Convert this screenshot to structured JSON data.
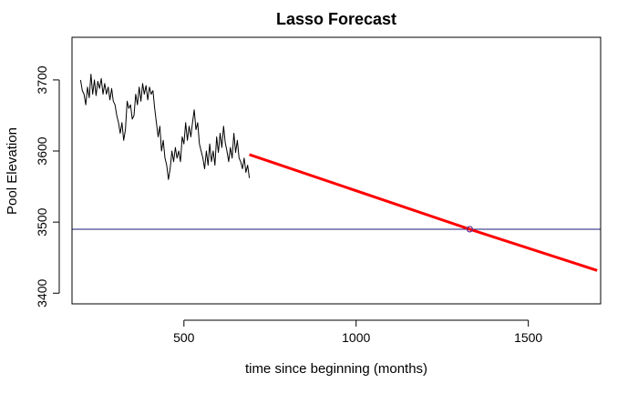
{
  "chart_data": {
    "type": "line",
    "title": "Lasso Forecast",
    "xlabel": "time since beginning (months)",
    "ylabel": "Pool Elevation",
    "xlim": [
      175,
      1710
    ],
    "ylim": [
      3385,
      3760
    ],
    "x_ticks": [
      500,
      1000,
      1500
    ],
    "y_ticks": [
      3400,
      3500,
      3600,
      3700
    ],
    "grid": false,
    "legend": "none",
    "series": [
      {
        "color": "#000000",
        "style": "line",
        "x": [
          200,
          205,
          210,
          215,
          220,
          225,
          230,
          235,
          240,
          245,
          250,
          255,
          260,
          265,
          270,
          275,
          280,
          285,
          290,
          295,
          300,
          305,
          310,
          315,
          320,
          325,
          330,
          335,
          340,
          345,
          350,
          355,
          360,
          365,
          370,
          375,
          380,
          385,
          390,
          395,
          400,
          405,
          410,
          415,
          420,
          425,
          430,
          435,
          440,
          445,
          450,
          455,
          460,
          465,
          470,
          475,
          480,
          485,
          490,
          495,
          500,
          505,
          510,
          515,
          520,
          525,
          530,
          535,
          540,
          545,
          550,
          555,
          560,
          565,
          570,
          575,
          580,
          585,
          590,
          595,
          600,
          605,
          610,
          615,
          620,
          625,
          630,
          635,
          640,
          645,
          650,
          655,
          660,
          665,
          670,
          675,
          680,
          685,
          690
        ],
        "y": [
          3700,
          3685,
          3680,
          3665,
          3690,
          3675,
          3708,
          3680,
          3700,
          3678,
          3698,
          3688,
          3702,
          3680,
          3695,
          3680,
          3690,
          3672,
          3688,
          3670,
          3665,
          3650,
          3640,
          3625,
          3640,
          3615,
          3630,
          3670,
          3660,
          3665,
          3645,
          3650,
          3680,
          3665,
          3690,
          3670,
          3695,
          3680,
          3692,
          3672,
          3690,
          3680,
          3685,
          3660,
          3640,
          3620,
          3635,
          3600,
          3615,
          3590,
          3580,
          3560,
          3575,
          3600,
          3585,
          3605,
          3590,
          3600,
          3585,
          3620,
          3610,
          3640,
          3615,
          3635,
          3620,
          3640,
          3658,
          3630,
          3640,
          3610,
          3600,
          3590,
          3575,
          3600,
          3580,
          3610,
          3585,
          3600,
          3580,
          3620,
          3598,
          3625,
          3605,
          3635,
          3612,
          3600,
          3585,
          3605,
          3590,
          3625,
          3598,
          3615,
          3590,
          3585,
          3575,
          3590,
          3570,
          3580,
          3562
        ]
      },
      {
        "color": "#ff0000",
        "style": "line",
        "x": [
          690,
          1330,
          1700
        ],
        "y": [
          3595,
          3490,
          3432
        ]
      }
    ],
    "hline": {
      "y": 3490,
      "color": "#1a1a7a"
    },
    "marker": {
      "x": 1330,
      "y": 3490,
      "color": "#5a2d8c",
      "shape": "open-circle"
    }
  }
}
